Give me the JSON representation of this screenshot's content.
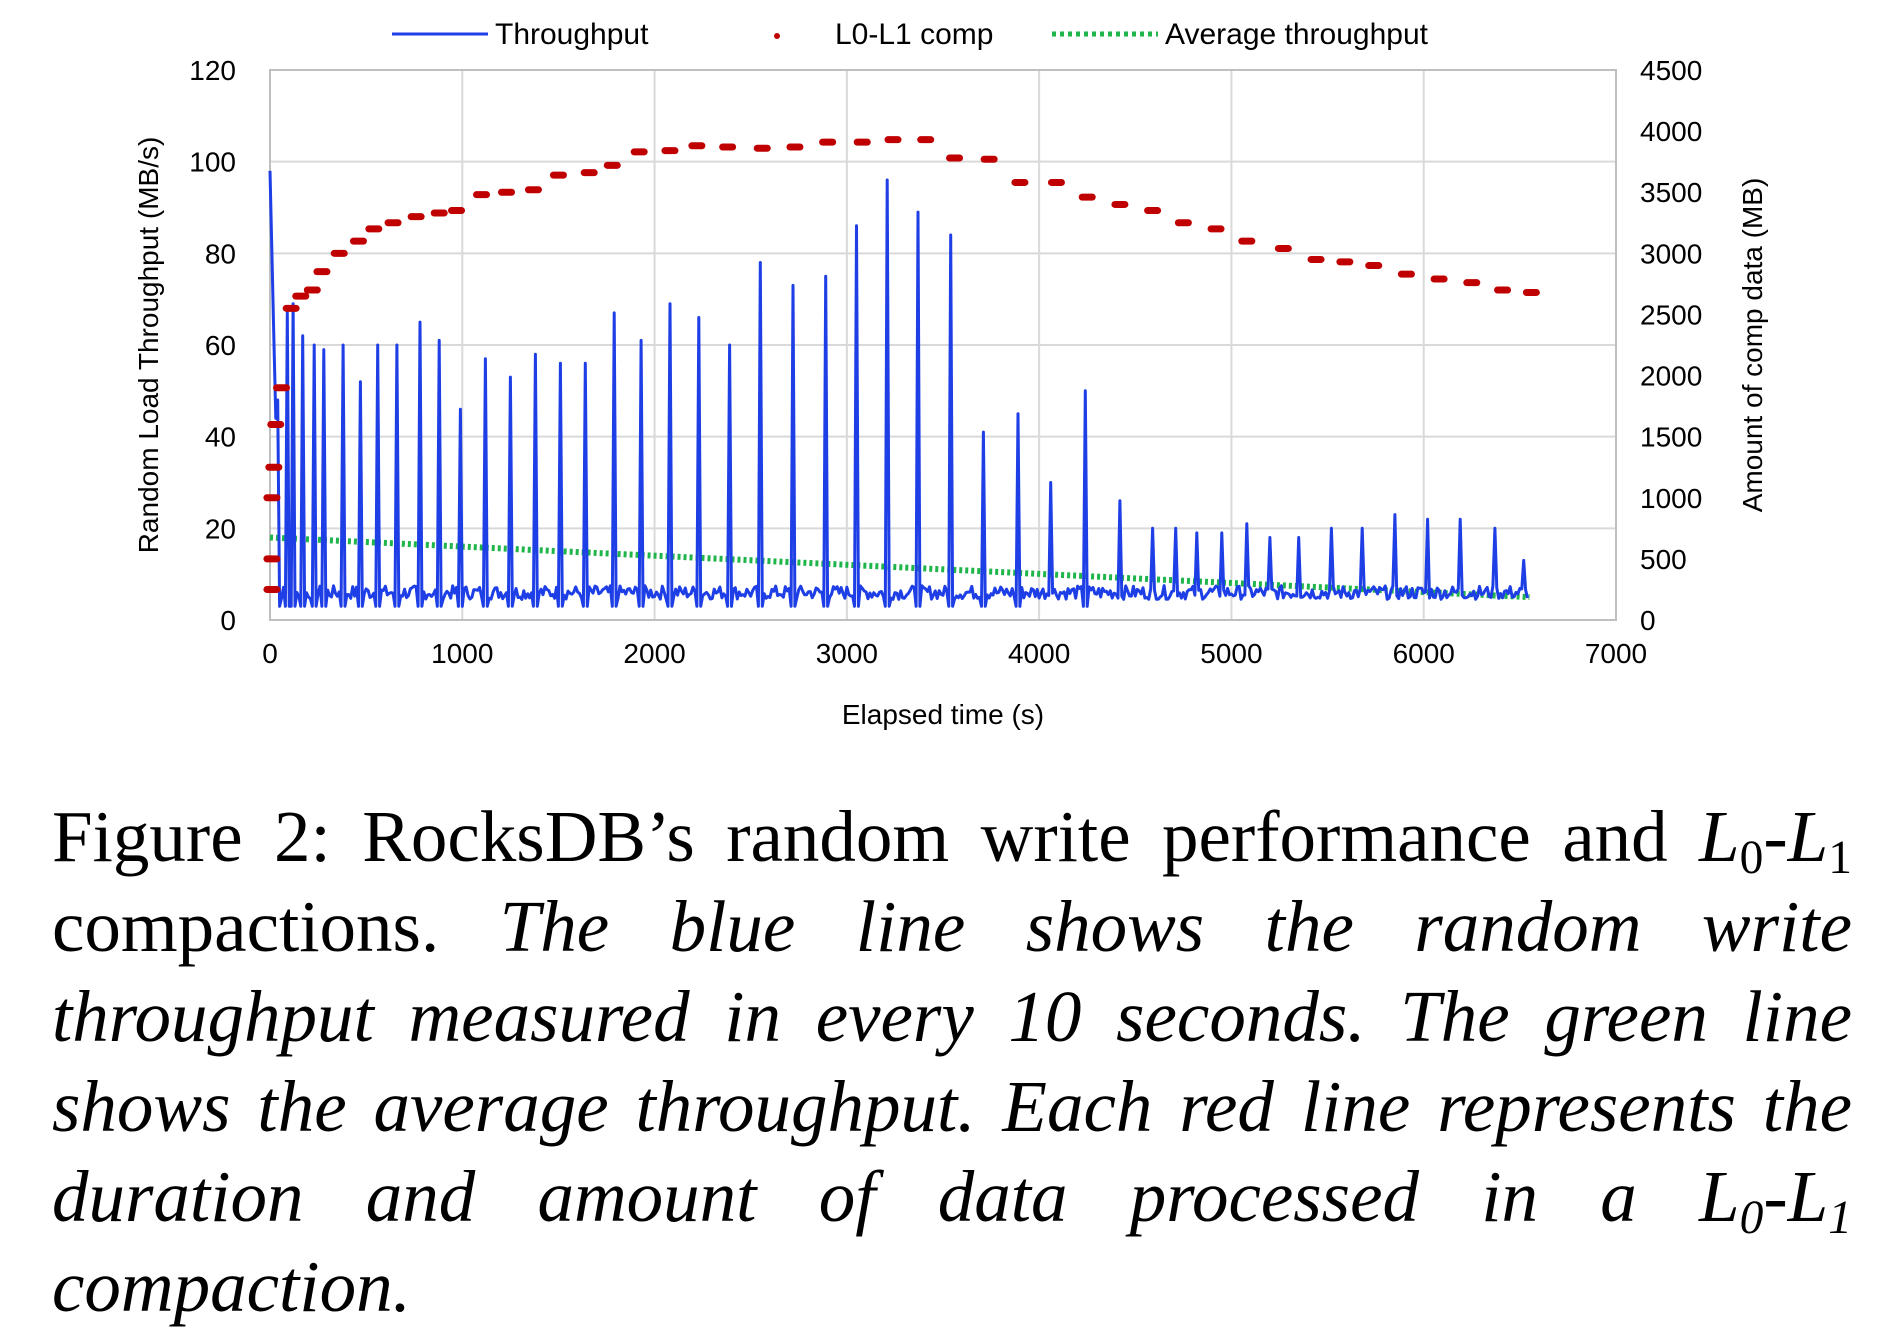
{
  "chart_data": {
    "type": "line",
    "xlabel": "Elapsed time (s)",
    "ylabel_left": "Random Load Throughput (MB/s)",
    "ylabel_right": "Amount of comp data (MB)",
    "xlim": [
      0,
      7000
    ],
    "ylim_left": [
      0,
      120
    ],
    "ylim_right": [
      0,
      4500
    ],
    "x_ticks": [
      0,
      1000,
      2000,
      3000,
      4000,
      5000,
      6000,
      7000
    ],
    "y_ticks_left": [
      0,
      20,
      40,
      60,
      80,
      100,
      120
    ],
    "y_ticks_right": [
      0,
      500,
      1000,
      1500,
      2000,
      2500,
      3000,
      3500,
      4000,
      4500
    ],
    "grid": true,
    "legend_position": "top",
    "legend": [
      "Throughput",
      "L0-L1 comp",
      "Average throughput"
    ],
    "colors": {
      "throughput": "#1f3fe6",
      "comp": "#c00000",
      "average": "#1fb54a"
    },
    "throughput_spikes": [
      [
        5,
        98
      ],
      [
        40,
        48
      ],
      [
        90,
        67
      ],
      [
        120,
        69
      ],
      [
        170,
        62
      ],
      [
        230,
        60
      ],
      [
        280,
        59
      ],
      [
        380,
        60
      ],
      [
        470,
        52
      ],
      [
        560,
        60
      ],
      [
        660,
        60
      ],
      [
        780,
        65
      ],
      [
        880,
        61
      ],
      [
        990,
        46
      ],
      [
        1120,
        57
      ],
      [
        1250,
        53
      ],
      [
        1380,
        58
      ],
      [
        1510,
        56
      ],
      [
        1640,
        56
      ],
      [
        1790,
        67
      ],
      [
        1930,
        61
      ],
      [
        2080,
        69
      ],
      [
        2230,
        66
      ],
      [
        2390,
        60
      ],
      [
        2550,
        78
      ],
      [
        2720,
        73
      ],
      [
        2890,
        75
      ],
      [
        3050,
        86
      ],
      [
        3210,
        96
      ],
      [
        3370,
        89
      ],
      [
        3540,
        84
      ],
      [
        3710,
        41
      ],
      [
        3890,
        45
      ],
      [
        4060,
        30
      ],
      [
        4240,
        50
      ],
      [
        4420,
        26
      ],
      [
        4590,
        20
      ],
      [
        4710,
        20
      ],
      [
        4820,
        19
      ],
      [
        4950,
        19
      ],
      [
        5080,
        21
      ],
      [
        5200,
        18
      ],
      [
        5350,
        18
      ],
      [
        5520,
        20
      ],
      [
        5680,
        20
      ],
      [
        5850,
        23
      ],
      [
        6020,
        22
      ],
      [
        6190,
        22
      ],
      [
        6370,
        20
      ],
      [
        6520,
        13
      ]
    ],
    "throughput_baseline": 6,
    "average_throughput": {
      "x": [
        0,
        6550
      ],
      "y": [
        18,
        5
      ]
    },
    "comp_points": [
      [
        10,
        250
      ],
      [
        10,
        500
      ],
      [
        10,
        1000
      ],
      [
        20,
        1250
      ],
      [
        30,
        1600
      ],
      [
        60,
        1900
      ],
      [
        110,
        2550
      ],
      [
        160,
        2650
      ],
      [
        220,
        2700
      ],
      [
        270,
        2850
      ],
      [
        360,
        3000
      ],
      [
        460,
        3100
      ],
      [
        540,
        3200
      ],
      [
        640,
        3250
      ],
      [
        760,
        3300
      ],
      [
        880,
        3330
      ],
      [
        970,
        3350
      ],
      [
        1100,
        3480
      ],
      [
        1230,
        3500
      ],
      [
        1370,
        3520
      ],
      [
        1500,
        3640
      ],
      [
        1660,
        3660
      ],
      [
        1780,
        3720
      ],
      [
        1920,
        3830
      ],
      [
        2080,
        3840
      ],
      [
        2220,
        3880
      ],
      [
        2380,
        3870
      ],
      [
        2560,
        3860
      ],
      [
        2730,
        3870
      ],
      [
        2900,
        3910
      ],
      [
        3080,
        3910
      ],
      [
        3240,
        3930
      ],
      [
        3410,
        3930
      ],
      [
        3560,
        3780
      ],
      [
        3740,
        3770
      ],
      [
        3900,
        3580
      ],
      [
        4090,
        3580
      ],
      [
        4250,
        3460
      ],
      [
        4420,
        3400
      ],
      [
        4590,
        3350
      ],
      [
        4750,
        3250
      ],
      [
        4920,
        3200
      ],
      [
        5080,
        3100
      ],
      [
        5270,
        3040
      ],
      [
        5440,
        2950
      ],
      [
        5590,
        2930
      ],
      [
        5740,
        2900
      ],
      [
        5910,
        2830
      ],
      [
        6080,
        2790
      ],
      [
        6250,
        2760
      ],
      [
        6410,
        2700
      ],
      [
        6560,
        2680
      ]
    ]
  },
  "caption": {
    "line1_a": "Figure 2: RocksDB’s random write performance and ",
    "L": "L",
    "sub0": "0",
    "dash": "-",
    "sub1": "1",
    "line2_a": " compactions. ",
    "italic_a": "The blue line shows the random write throughput measured in every 10 seconds. The green line shows the average throughput. Each red line represents the duration and amount of data processed in a ",
    "italic_end": " compaction."
  }
}
